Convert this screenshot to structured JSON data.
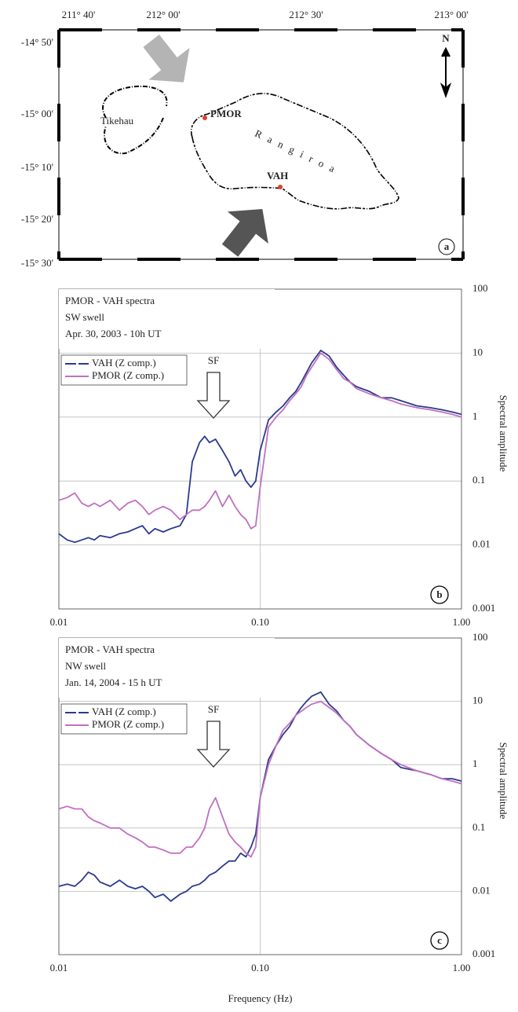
{
  "map": {
    "lon_labels": [
      "211° 40'",
      "212° 00'",
      "212° 30'",
      "213° 00'"
    ],
    "lat_labels": [
      "-14° 50'",
      "-15° 00'",
      "-15° 10'",
      "-15° 20'",
      "-15° 30'"
    ],
    "places": [
      "Tikehau",
      "Rangiroa"
    ],
    "stations": [
      "PMOR",
      "VAH"
    ],
    "north": "N",
    "panel": "a"
  },
  "chart_data": [
    {
      "type": "line",
      "xscale": "log",
      "yscale": "log",
      "grid": true,
      "legend": "upper left",
      "ylabel": "Spectral amplitude",
      "annotations": {
        "info": [
          "PMOR - VAH spectra",
          "SW swell",
          "Apr. 30, 2003 - 10h UT"
        ],
        "sf": "SF",
        "panel": "b"
      },
      "xlim": [
        0.01,
        1
      ],
      "xticks": [
        0.01,
        {
          "value": 0.1,
          "label": "0.10"
        },
        {
          "value": 1,
          "label": "1.00"
        }
      ],
      "ylim": [
        0.001,
        100
      ],
      "yticks": [
        0.001,
        0.01,
        0.1,
        1,
        10,
        100
      ],
      "x": [
        0.01,
        0.011,
        0.012,
        0.013,
        0.014,
        0.015,
        0.016,
        0.018,
        0.02,
        0.022,
        0.024,
        0.026,
        0.028,
        0.03,
        0.033,
        0.036,
        0.04,
        0.043,
        0.046,
        0.05,
        0.053,
        0.056,
        0.06,
        0.065,
        0.07,
        0.075,
        0.08,
        0.085,
        0.09,
        0.095,
        0.1,
        0.11,
        0.12,
        0.13,
        0.14,
        0.15,
        0.16,
        0.17,
        0.18,
        0.2,
        0.22,
        0.24,
        0.26,
        0.28,
        0.3,
        0.35,
        0.4,
        0.45,
        0.5,
        0.6,
        0.7,
        0.8,
        0.9,
        1.0
      ],
      "series": [
        {
          "name": "VAH (Z comp.)",
          "color": "#2b3a8c",
          "values": [
            0.015,
            0.012,
            0.011,
            0.012,
            0.013,
            0.012,
            0.014,
            0.013,
            0.015,
            0.016,
            0.018,
            0.02,
            0.015,
            0.018,
            0.016,
            0.018,
            0.02,
            0.03,
            0.2,
            0.4,
            0.5,
            0.4,
            0.45,
            0.3,
            0.2,
            0.12,
            0.15,
            0.1,
            0.08,
            0.1,
            0.3,
            0.9,
            1.2,
            1.5,
            2,
            2.5,
            3.5,
            5,
            7,
            11,
            9,
            6,
            4.5,
            3.5,
            3,
            2.5,
            2,
            2,
            1.8,
            1.5,
            1.4,
            1.3,
            1.2,
            1.1
          ]
        },
        {
          "name": "PMOR (Z comp.)",
          "color": "#c070c0",
          "values": [
            0.05,
            0.055,
            0.065,
            0.045,
            0.04,
            0.045,
            0.04,
            0.05,
            0.035,
            0.045,
            0.05,
            0.04,
            0.03,
            0.035,
            0.04,
            0.035,
            0.025,
            0.03,
            0.035,
            0.035,
            0.04,
            0.05,
            0.07,
            0.04,
            0.06,
            0.04,
            0.03,
            0.025,
            0.018,
            0.02,
            0.08,
            0.7,
            1,
            1.3,
            1.8,
            2.3,
            3,
            4.5,
            6,
            10,
            8,
            5.5,
            4,
            3.5,
            2.8,
            2.3,
            2,
            1.8,
            1.6,
            1.4,
            1.3,
            1.2,
            1.1,
            1.0
          ]
        }
      ]
    },
    {
      "type": "line",
      "xscale": "log",
      "yscale": "log",
      "grid": true,
      "legend": "upper left",
      "ylabel": "Spectral amplitude",
      "xlabel": "Frequency (Hz)",
      "annotations": {
        "info": [
          "PMOR - VAH  spectra",
          "NW swell",
          "Jan. 14, 2004 - 15 h UT"
        ],
        "sf": "SF",
        "panel": "c"
      },
      "xlim": [
        0.01,
        1
      ],
      "xticks": [
        0.01,
        {
          "value": 0.1,
          "label": "0.10"
        },
        {
          "value": 1,
          "label": "1.00"
        }
      ],
      "ylim": [
        0.001,
        100
      ],
      "yticks": [
        0.001,
        0.01,
        0.1,
        1,
        10,
        100
      ],
      "x": [
        0.01,
        0.011,
        0.012,
        0.013,
        0.014,
        0.015,
        0.016,
        0.018,
        0.02,
        0.022,
        0.024,
        0.026,
        0.028,
        0.03,
        0.033,
        0.036,
        0.04,
        0.043,
        0.046,
        0.05,
        0.053,
        0.056,
        0.06,
        0.065,
        0.07,
        0.075,
        0.08,
        0.085,
        0.09,
        0.095,
        0.1,
        0.11,
        0.12,
        0.13,
        0.14,
        0.15,
        0.16,
        0.17,
        0.18,
        0.2,
        0.22,
        0.24,
        0.26,
        0.28,
        0.3,
        0.35,
        0.4,
        0.45,
        0.5,
        0.6,
        0.7,
        0.8,
        0.9,
        1.0
      ],
      "series": [
        {
          "name": "VAH (Z comp.)",
          "color": "#2b3a8c",
          "values": [
            0.012,
            0.013,
            0.012,
            0.015,
            0.02,
            0.018,
            0.014,
            0.012,
            0.015,
            0.012,
            0.011,
            0.012,
            0.01,
            0.008,
            0.009,
            0.007,
            0.009,
            0.01,
            0.012,
            0.013,
            0.015,
            0.018,
            0.02,
            0.025,
            0.03,
            0.03,
            0.04,
            0.035,
            0.05,
            0.08,
            0.3,
            1.2,
            2,
            3,
            4,
            6,
            8,
            10,
            12,
            14,
            9,
            7,
            5,
            4,
            3,
            2,
            1.5,
            1.2,
            0.9,
            0.8,
            0.7,
            0.6,
            0.6,
            0.55
          ]
        },
        {
          "name": "PMOR (Z comp.)",
          "color": "#c070c0",
          "values": [
            0.2,
            0.22,
            0.2,
            0.2,
            0.15,
            0.13,
            0.12,
            0.1,
            0.1,
            0.08,
            0.07,
            0.06,
            0.05,
            0.05,
            0.045,
            0.04,
            0.04,
            0.05,
            0.05,
            0.07,
            0.1,
            0.2,
            0.3,
            0.15,
            0.08,
            0.06,
            0.05,
            0.04,
            0.035,
            0.05,
            0.3,
            1,
            2,
            3.5,
            4.5,
            6,
            7,
            8,
            9,
            10,
            8,
            6.5,
            5,
            4,
            3,
            2,
            1.5,
            1.2,
            1,
            0.8,
            0.7,
            0.6,
            0.55,
            0.5
          ]
        }
      ]
    }
  ]
}
